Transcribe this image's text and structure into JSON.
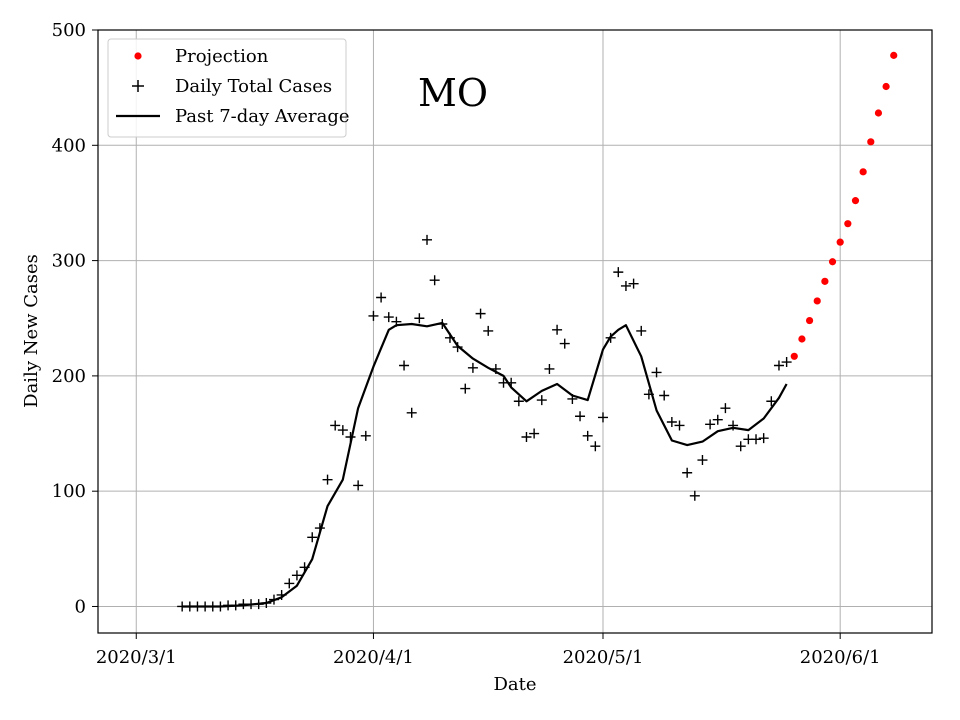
{
  "chart_data": {
    "type": "line",
    "title": "",
    "annotation": "MO",
    "xlabel": "Date",
    "ylabel": "Daily New Cases",
    "xlim": [
      "2020-02-25",
      "2020-06-13"
    ],
    "ylim": [
      -23,
      500
    ],
    "x_ticks": [
      "2020-03-01",
      "2020-04-01",
      "2020-05-01",
      "2020-06-01"
    ],
    "x_tick_labels": [
      "2020/3/1",
      "2020/4/1",
      "2020/5/1",
      "2020/6/1"
    ],
    "y_ticks": [
      0,
      100,
      200,
      300,
      400,
      500
    ],
    "y_tick_labels": [
      "0",
      "100",
      "200",
      "300",
      "400",
      "500"
    ],
    "grid": true,
    "legend_position": "top-left",
    "colors": {
      "projection": "#ff0000",
      "daily": "#000000",
      "average": "#000000"
    },
    "series": [
      {
        "name": "Projection",
        "marker": "dot",
        "x": [
          "2020-05-26",
          "2020-05-27",
          "2020-05-28",
          "2020-05-29",
          "2020-05-30",
          "2020-05-31",
          "2020-06-01",
          "2020-06-02",
          "2020-06-03",
          "2020-06-04",
          "2020-06-05",
          "2020-06-06",
          "2020-06-07",
          "2020-06-08"
        ],
        "y": [
          217,
          232,
          248,
          265,
          282,
          299,
          316,
          332,
          352,
          377,
          403,
          428,
          451,
          478
        ]
      },
      {
        "name": "Daily Total Cases",
        "marker": "plus",
        "x": [
          "2020-03-07",
          "2020-03-08",
          "2020-03-09",
          "2020-03-10",
          "2020-03-11",
          "2020-03-12",
          "2020-03-13",
          "2020-03-14",
          "2020-03-15",
          "2020-03-16",
          "2020-03-17",
          "2020-03-18",
          "2020-03-19",
          "2020-03-20",
          "2020-03-21",
          "2020-03-22",
          "2020-03-23",
          "2020-03-24",
          "2020-03-25",
          "2020-03-26",
          "2020-03-27",
          "2020-03-28",
          "2020-03-29",
          "2020-03-30",
          "2020-03-31",
          "2020-04-01",
          "2020-04-02",
          "2020-04-03",
          "2020-04-04",
          "2020-04-05",
          "2020-04-06",
          "2020-04-07",
          "2020-04-08",
          "2020-04-09",
          "2020-04-10",
          "2020-04-11",
          "2020-04-12",
          "2020-04-13",
          "2020-04-14",
          "2020-04-15",
          "2020-04-16",
          "2020-04-17",
          "2020-04-18",
          "2020-04-19",
          "2020-04-20",
          "2020-04-21",
          "2020-04-22",
          "2020-04-23",
          "2020-04-24",
          "2020-04-25",
          "2020-04-26",
          "2020-04-27",
          "2020-04-28",
          "2020-04-29",
          "2020-04-30",
          "2020-05-01",
          "2020-05-02",
          "2020-05-03",
          "2020-05-04",
          "2020-05-05",
          "2020-05-06",
          "2020-05-07",
          "2020-05-08",
          "2020-05-09",
          "2020-05-10",
          "2020-05-11",
          "2020-05-12",
          "2020-05-13",
          "2020-05-14",
          "2020-05-15",
          "2020-05-16",
          "2020-05-17",
          "2020-05-18",
          "2020-05-19",
          "2020-05-20",
          "2020-05-21",
          "2020-05-22",
          "2020-05-23",
          "2020-05-24",
          "2020-05-25"
        ],
        "y": [
          0,
          0,
          0,
          0,
          0,
          0,
          1,
          1,
          2,
          2,
          2,
          3,
          6,
          10,
          20,
          27,
          34,
          60,
          68,
          110,
          157,
          153,
          147,
          105,
          148,
          252,
          268,
          251,
          247,
          209,
          168,
          250,
          318,
          283,
          245,
          233,
          225,
          189,
          207,
          254,
          239,
          206,
          194,
          194,
          178,
          147,
          150,
          179,
          206,
          240,
          228,
          180,
          165,
          148,
          139,
          164,
          233,
          290,
          278,
          280,
          239,
          184,
          203,
          183,
          160,
          157,
          116,
          96,
          127,
          158,
          162,
          172,
          157,
          139,
          145,
          145,
          146,
          178,
          209,
          212
        ]
      },
      {
        "name": "Past 7-day Average",
        "marker": "line",
        "x": [
          "2020-03-07",
          "2020-03-12",
          "2020-03-15",
          "2020-03-18",
          "2020-03-20",
          "2020-03-22",
          "2020-03-24",
          "2020-03-26",
          "2020-03-28",
          "2020-03-30",
          "2020-04-01",
          "2020-04-02",
          "2020-04-03",
          "2020-04-04",
          "2020-04-06",
          "2020-04-08",
          "2020-04-10",
          "2020-04-12",
          "2020-04-14",
          "2020-04-16",
          "2020-04-18",
          "2020-04-19",
          "2020-04-21",
          "2020-04-23",
          "2020-04-25",
          "2020-04-27",
          "2020-04-29",
          "2020-05-01",
          "2020-05-02",
          "2020-05-03",
          "2020-05-04",
          "2020-05-06",
          "2020-05-08",
          "2020-05-10",
          "2020-05-12",
          "2020-05-14",
          "2020-05-16",
          "2020-05-18",
          "2020-05-20",
          "2020-05-22",
          "2020-05-24",
          "2020-05-25"
        ],
        "y": [
          0,
          0,
          1,
          3,
          8,
          18,
          41,
          87,
          110,
          172,
          208,
          224,
          240,
          244,
          245,
          243,
          246,
          226,
          215,
          207,
          200,
          190,
          178,
          187,
          193,
          183,
          179,
          223,
          234,
          240,
          244,
          217,
          170,
          144,
          140,
          143,
          152,
          155,
          153,
          163,
          181,
          193
        ]
      }
    ]
  }
}
